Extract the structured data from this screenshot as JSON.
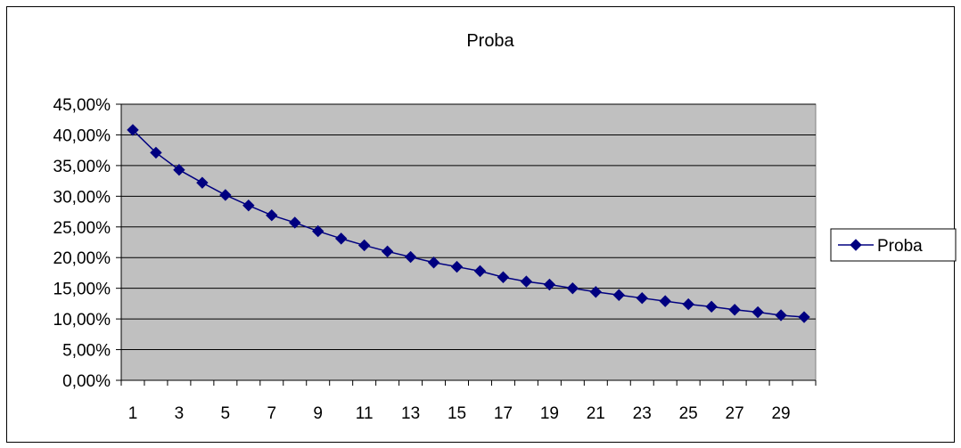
{
  "chart_data": {
    "type": "line",
    "title": "Proba",
    "xlabel": "",
    "ylabel": "",
    "x": [
      1,
      2,
      3,
      4,
      5,
      6,
      7,
      8,
      9,
      10,
      11,
      12,
      13,
      14,
      15,
      16,
      17,
      18,
      19,
      20,
      21,
      22,
      23,
      24,
      25,
      26,
      27,
      28,
      29,
      30
    ],
    "x_tick_labels": [
      "1",
      "3",
      "5",
      "7",
      "9",
      "11",
      "13",
      "15",
      "17",
      "19",
      "21",
      "23",
      "25",
      "27",
      "29"
    ],
    "y_tick_labels": [
      "0,00%",
      "5,00%",
      "10,00%",
      "15,00%",
      "20,00%",
      "25,00%",
      "30,00%",
      "35,00%",
      "40,00%",
      "45,00%"
    ],
    "ylim": [
      0,
      0.45
    ],
    "grid": "horizontal",
    "plot_background": "#c0c0c0",
    "legend_position": "right",
    "series": [
      {
        "name": "Proba",
        "color": "#000080",
        "marker": "diamond",
        "values": [
          0.408,
          0.371,
          0.343,
          0.322,
          0.302,
          0.285,
          0.269,
          0.257,
          0.243,
          0.231,
          0.22,
          0.21,
          0.201,
          0.192,
          0.185,
          0.178,
          0.168,
          0.161,
          0.156,
          0.15,
          0.144,
          0.139,
          0.134,
          0.129,
          0.124,
          0.12,
          0.115,
          0.111,
          0.106,
          0.103
        ]
      }
    ]
  }
}
